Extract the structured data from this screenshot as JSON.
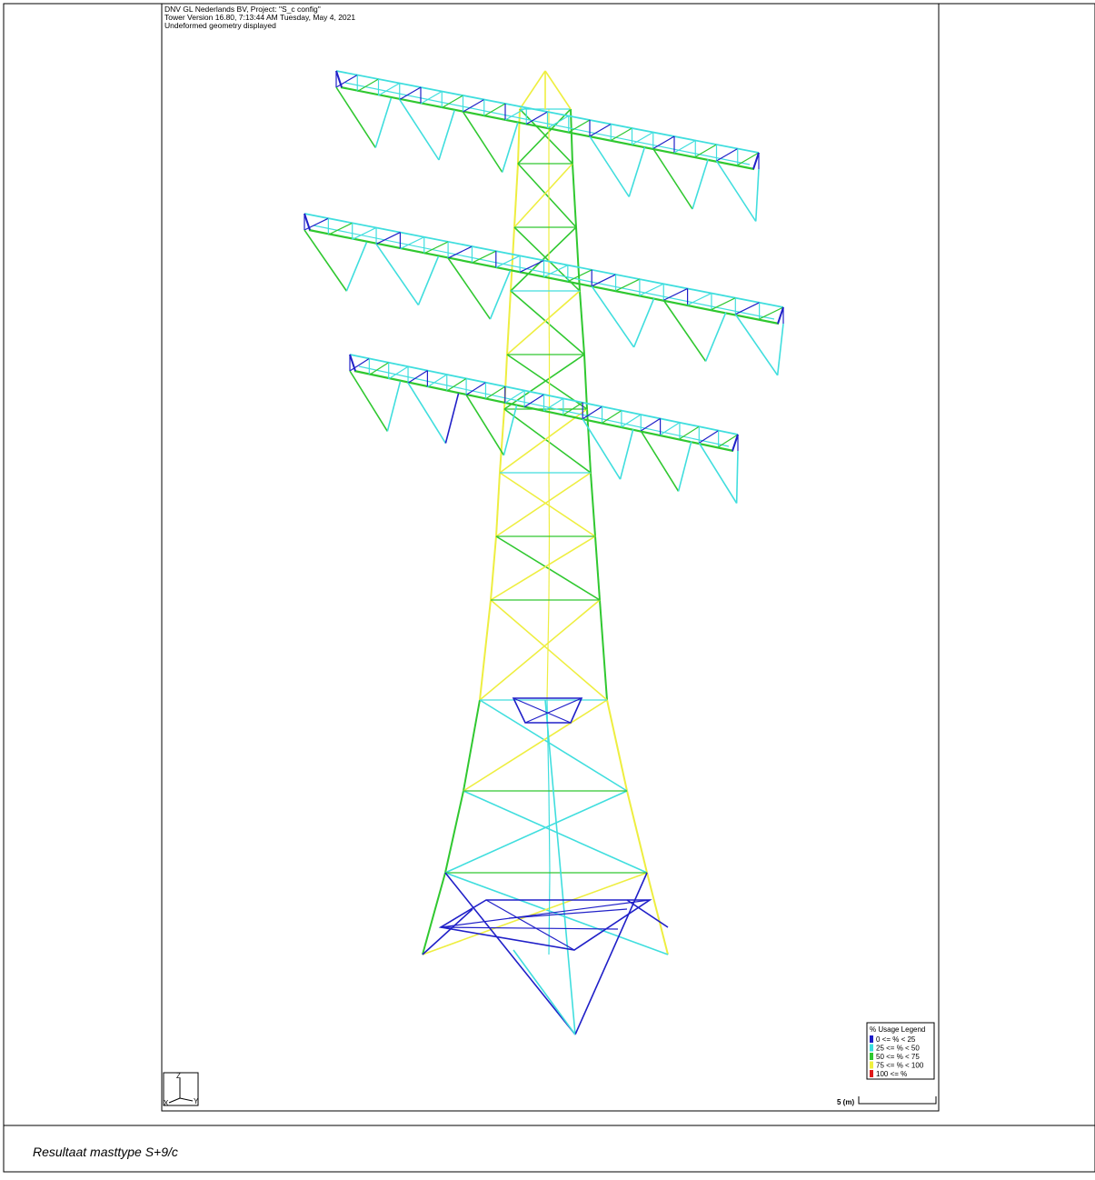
{
  "header": {
    "lines": [
      "DNV GL Nederlands BV,  Project: \"S_c config\"",
      "Tower Version 16.80,  7:13:44 AM Tuesday, May 4, 2021",
      "Undeformed geometry displayed"
    ]
  },
  "legend": {
    "title": "% Usage Legend",
    "items": [
      {
        "label": "0 <= % <  25",
        "color": "#1c1cc8"
      },
      {
        "label": "25 <= % <  50",
        "color": "#38dede"
      },
      {
        "label": "50 <= % <  75",
        "color": "#2ec82e"
      },
      {
        "label": "75 <= % < 100",
        "color": "#f0f03c"
      },
      {
        "label": "100 <= %",
        "color": "#e01818"
      }
    ]
  },
  "axes_icon": {
    "z": "Z",
    "x": "X",
    "y": "Y"
  },
  "scale": {
    "label": "5 (m)"
  },
  "caption": "Resultaat masttype S+9/c"
}
